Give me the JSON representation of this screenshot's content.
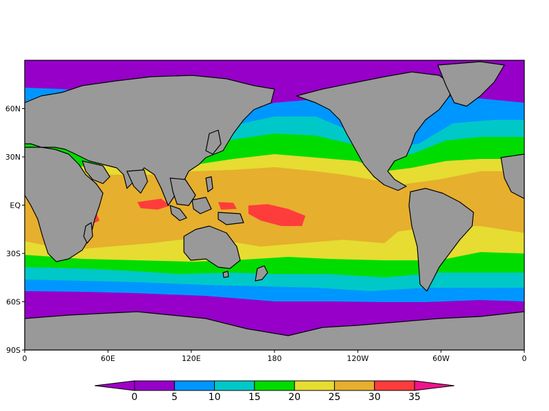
{
  "map": {
    "type": "global-filled-contour",
    "projection": "cylindrical-equidistant",
    "lon_range": [
      0,
      360
    ],
    "lat_range": [
      -90,
      90
    ],
    "land_color": "#999999",
    "coastline_color": "#000000",
    "lat_ticks": [
      {
        "lat": 60,
        "label": "60N"
      },
      {
        "lat": 30,
        "label": "30N"
      },
      {
        "lat": 0,
        "label": "EQ"
      },
      {
        "lat": -30,
        "label": "30S"
      },
      {
        "lat": -60,
        "label": "60S"
      },
      {
        "lat": -90,
        "label": "90S"
      }
    ],
    "lon_ticks": [
      {
        "lon": 0,
        "label": "0"
      },
      {
        "lon": 60,
        "label": "60E"
      },
      {
        "lon": 120,
        "label": "120E"
      },
      {
        "lon": 180,
        "label": "180"
      },
      {
        "lon": 240,
        "label": "120W"
      },
      {
        "lon": 300,
        "label": "60W"
      },
      {
        "lon": 360,
        "label": "0"
      }
    ]
  },
  "colorbar": {
    "levels": [
      0,
      5,
      10,
      15,
      20,
      25,
      30,
      35
    ],
    "labels": [
      "0",
      "5",
      "10",
      "15",
      "20",
      "25",
      "30",
      "35"
    ],
    "colors": [
      "#9600c8",
      "#0096ff",
      "#00c8c8",
      "#00dc00",
      "#e6dc32",
      "#e6af2d",
      "#ff3c3c"
    ],
    "under_color": "#a000c8",
    "over_color": "#f0148c"
  }
}
